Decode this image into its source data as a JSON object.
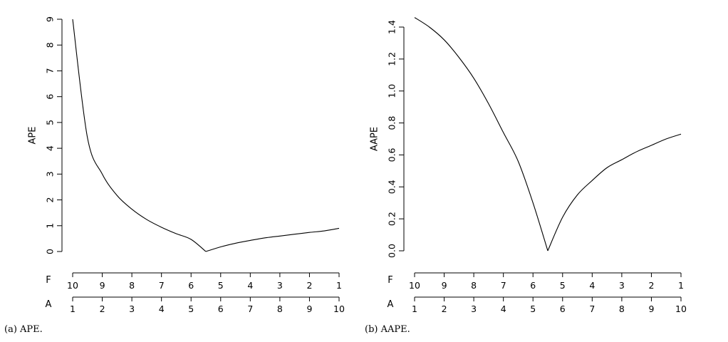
{
  "chart_data": [
    {
      "type": "line",
      "caption": "(a) APE.",
      "ylabel": "APE",
      "yticks": [
        "0",
        "1",
        "2",
        "3",
        "4",
        "5",
        "6",
        "7",
        "8",
        "9"
      ],
      "ylim": [
        0,
        9
      ],
      "secondary_axes": [
        {
          "label": "F",
          "ticks": [
            "10",
            "9",
            "8",
            "7",
            "6",
            "5",
            "4",
            "3",
            "2",
            "1"
          ]
        },
        {
          "label": "A",
          "ticks": [
            "1",
            "2",
            "3",
            "4",
            "5",
            "6",
            "7",
            "8",
            "9",
            "10"
          ]
        }
      ],
      "series": [
        {
          "x": [
            1,
            1.5,
            2,
            2.5,
            3,
            3.5,
            4,
            4.5,
            5,
            5.5,
            6,
            6.5,
            7,
            7.5,
            8,
            8.5,
            9,
            9.5,
            10
          ],
          "y": [
            9,
            4.41,
            3.0,
            2.17,
            1.64,
            1.24,
            0.94,
            0.69,
            0.47,
            0.0,
            0.18,
            0.32,
            0.43,
            0.53,
            0.6,
            0.67,
            0.74,
            0.8,
            0.9
          ]
        }
      ]
    },
    {
      "type": "line",
      "caption": "(b) AAPE.",
      "ylabel": "AAPE",
      "yticks": [
        "0.0",
        "0.2",
        "0.4",
        "0.6",
        "0.8",
        "1.0",
        "1.2",
        "1.4"
      ],
      "ylim": [
        0,
        1.4
      ],
      "secondary_axes": [
        {
          "label": "F",
          "ticks": [
            "10",
            "9",
            "8",
            "7",
            "6",
            "5",
            "4",
            "3",
            "2",
            "1"
          ]
        },
        {
          "label": "A",
          "ticks": [
            "1",
            "2",
            "3",
            "4",
            "5",
            "6",
            "7",
            "8",
            "9",
            "10"
          ]
        }
      ],
      "series": [
        {
          "x": [
            1,
            1.5,
            2,
            2.5,
            3,
            3.5,
            4,
            4.5,
            5,
            5.5,
            6,
            6.5,
            7,
            7.5,
            8,
            8.5,
            9,
            9.5,
            10
          ],
          "y": [
            1.46,
            1.4,
            1.32,
            1.21,
            1.08,
            0.92,
            0.74,
            0.56,
            0.3,
            0.0,
            0.21,
            0.35,
            0.44,
            0.52,
            0.57,
            0.62,
            0.66,
            0.7,
            0.73
          ]
        }
      ]
    }
  ]
}
